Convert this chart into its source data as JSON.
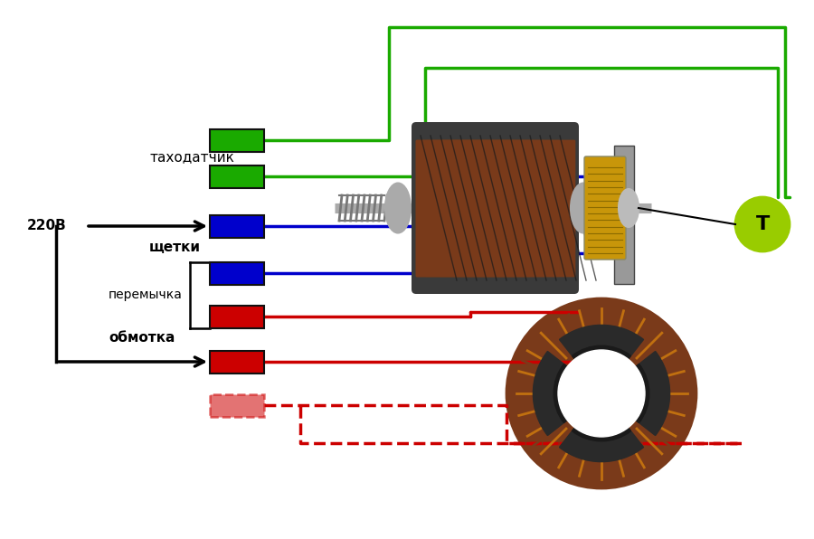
{
  "bg_color": "#ffffff",
  "green_color": "#1aaa00",
  "blue_color": "#0000cc",
  "red_color": "#cc0000",
  "gray_color": "#999999",
  "lime_color": "#99cc00",
  "black_color": "#000000",
  "lw": 2.5,
  "labels": {
    "tachosensor": "таходатчик",
    "220v": "220В",
    "brushes": "щетки",
    "jumper": "перемычка",
    "winding": "обмотка",
    "T": "T"
  },
  "fig_w": 9.0,
  "fig_h": 5.96,
  "dpi": 100,
  "xlim": [
    0,
    900
  ],
  "ylim": [
    0,
    596
  ]
}
